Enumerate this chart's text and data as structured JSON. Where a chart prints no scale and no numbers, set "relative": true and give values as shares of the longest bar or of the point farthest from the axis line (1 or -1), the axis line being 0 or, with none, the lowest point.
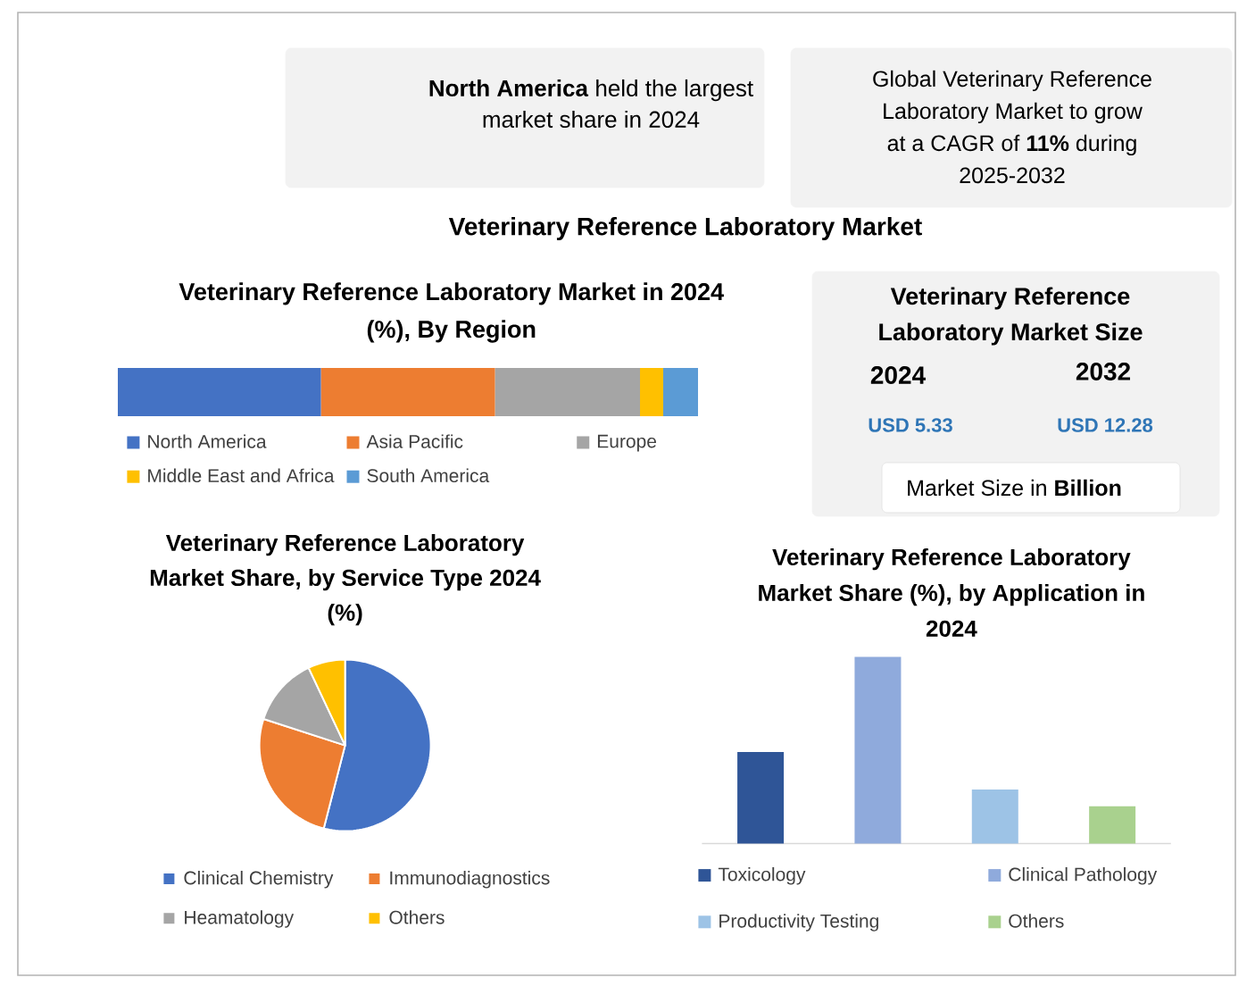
{
  "chart_data": [
    {
      "type": "other",
      "title": "Veterinary Reference Laboratory Market",
      "annotations": [
        "**North America** held the largest market share in 2024",
        "Global Veterinary Reference Laboratory Market to grow at a CAGR of **11%** during 2025-2032"
      ]
    },
    {
      "type": "bar",
      "orientation": "horizontal",
      "stacked": true,
      "relative": true,
      "title": "Veterinary Reference Laboratory Market in 2024 (%), By Region",
      "categories": [
        null
      ],
      "series": [
        {
          "name": "North America",
          "color": "#4472c4",
          "values": [
            0.35
          ]
        },
        {
          "name": "Asia Pacific",
          "color": "#ed7d31",
          "values": [
            0.3
          ]
        },
        {
          "name": "Europe",
          "color": "#a5a5a5",
          "values": [
            0.25
          ]
        },
        {
          "name": "Middle East and Africa",
          "color": "#ffc000",
          "values": [
            0.04
          ]
        },
        {
          "name": "South America",
          "color": "#5b9bd5",
          "values": [
            0.06
          ]
        }
      ],
      "legend": "bottom"
    },
    {
      "type": "other",
      "title": "Veterinary Reference Laboratory Market Size",
      "annotations": [
        "2024",
        "2032",
        "USD 5.33",
        "USD 12.28",
        "Market Size in **Billion**"
      ]
    },
    {
      "type": "pie",
      "title": "Veterinary Reference Laboratory Market Share, by Service Type 2024 (%)",
      "categories": [
        "Clinical Chemistry",
        "Immunodiagnostics",
        "Heamatology",
        "Others"
      ],
      "values": [
        54,
        26,
        13,
        7
      ],
      "colors": [
        "#4472c4",
        "#ed7d31",
        "#a5a5a5",
        "#ffc000"
      ],
      "legend": "bottom"
    },
    {
      "type": "bar",
      "stacked": true,
      "relative": true,
      "title": "Veterinary Reference Laboratory Market Share (%), by Application in 2024",
      "categories": [
        null,
        null,
        null,
        null
      ],
      "series": [
        {
          "name": "Toxicology",
          "color": "#2f5597",
          "values": [
            0.49,
            null,
            null,
            null
          ]
        },
        {
          "name": "Clinical Pathology",
          "color": "#8faadc",
          "values": [
            null,
            1,
            null,
            null
          ]
        },
        {
          "name": "Productivity Testing",
          "color": "#9dc3e6",
          "values": [
            null,
            null,
            0.29,
            null
          ]
        },
        {
          "name": "Others",
          "color": "#a9d18e",
          "values": [
            null,
            null,
            null,
            0.2
          ]
        }
      ],
      "legend": "bottom"
    }
  ]
}
